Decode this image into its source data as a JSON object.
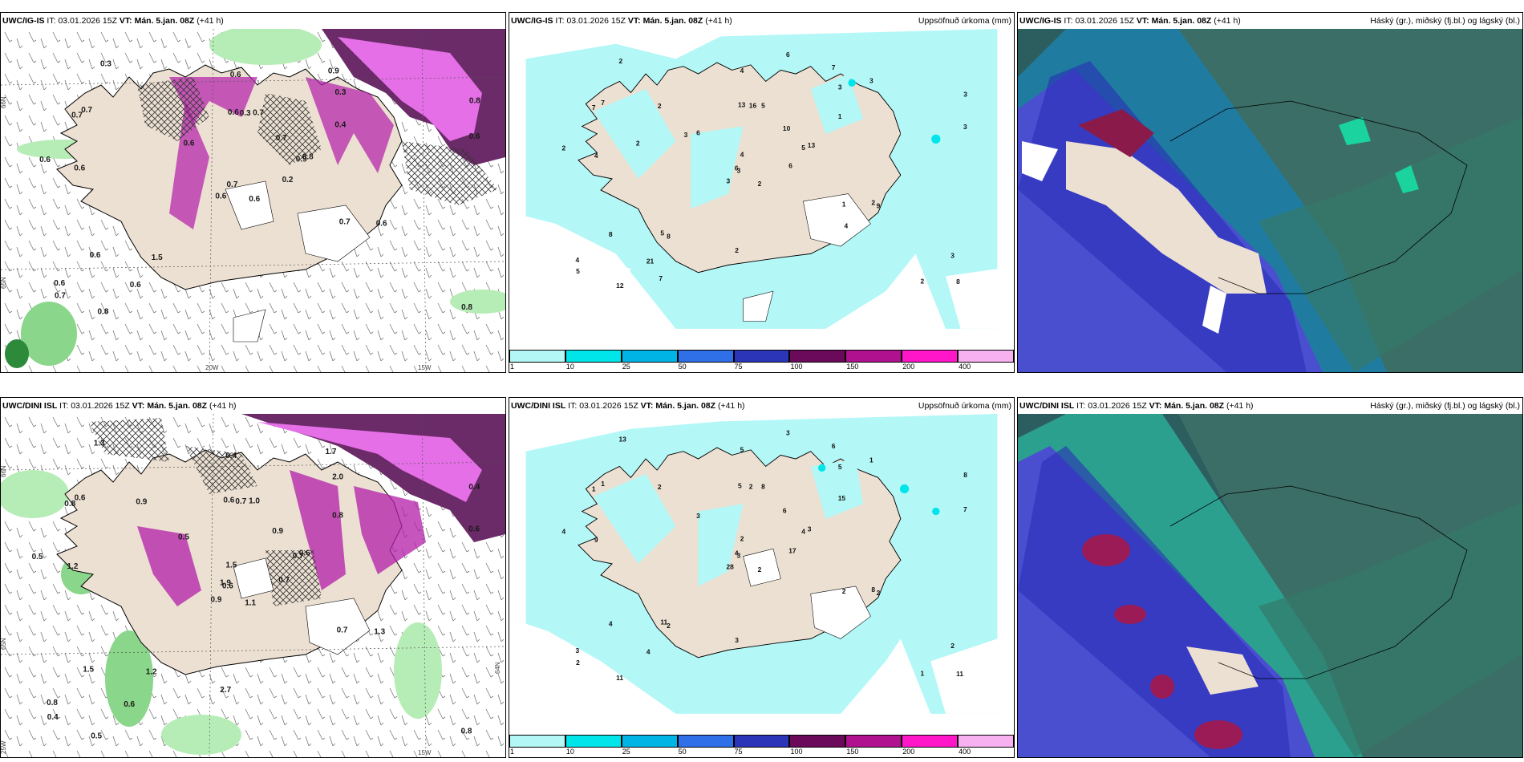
{
  "rows": [
    {
      "model": "UWC/IG-IS",
      "run_prefix": "IT:",
      "run_time": "03.01.2026 15Z",
      "valid_prefix": "VT:",
      "valid_time": "Mán. 5.jan. 08Z",
      "lead": "(+41 h)"
    },
    {
      "model": "UWC/DINI ISL",
      "run_prefix": "IT:",
      "run_time": "03.01.2026 15Z",
      "valid_prefix": "VT:",
      "valid_time": "Mán. 5.jan. 08Z",
      "lead": "(+41 h)"
    }
  ],
  "precip_title": "Uppsöfnuð úrkoma (mm)",
  "cloud_title": "Háský (gr.), miðský (fj.bl.) og lágský (bl.)",
  "axis_labels": {
    "lat66": "66N",
    "lat65": "65N",
    "lat64": "64N",
    "lon20": "20W",
    "lon15": "15W",
    "lon25": "25W"
  },
  "colorbar": {
    "levels": [
      "1",
      "10",
      "25",
      "50",
      "75",
      "100",
      "150",
      "200",
      "400"
    ],
    "colors": [
      "#b3f7f7",
      "#00e5ea",
      "#00b4e6",
      "#2f6fe8",
      "#2b35b8",
      "#6b0a5a",
      "#b0128f",
      "#ff16c8",
      "#f7b0f0"
    ]
  },
  "top_left_labels": [
    "0.6",
    "0.7",
    "0.7",
    "0.6",
    "0.9",
    "1.5",
    "0.9",
    "0.7",
    "0.3",
    "0.2",
    "0.3",
    "0.8",
    "0.6",
    "0.8",
    "0.6",
    "0.4",
    "0.8",
    "0.6",
    "0.7",
    "0.6",
    "0.6",
    "0.7",
    "0.6",
    "0.3",
    "0.8",
    "0.6",
    "0.7",
    "0.6",
    "0.6",
    "0.7",
    "0.6"
  ],
  "top_precip_labels": [
    "2",
    "7",
    "3",
    "4",
    "5",
    "8",
    "7",
    "5",
    "3",
    "6",
    "2",
    "8",
    "4",
    "3",
    "3",
    "1",
    "12",
    "13",
    "10",
    "8",
    "6",
    "5",
    "21",
    "16",
    "13",
    "9",
    "7",
    "4",
    "2",
    "1",
    "3",
    "6",
    "2",
    "4",
    "2",
    "3",
    "5",
    "2",
    "3",
    "2",
    "6",
    "3",
    "2",
    "4",
    "7"
  ],
  "bottom_left_labels": [
    "1.1",
    "0.8",
    "0.6",
    "0.8",
    "0.7",
    "1.2",
    "1.7",
    "1.0",
    "2.0",
    "0.7",
    "1.3",
    "0.8",
    "1.2",
    "0.4",
    "0.9",
    "0.8",
    "0.5",
    "0.6",
    "0.9",
    "1.5",
    "0.5",
    "0.4",
    "0.6",
    "0.7",
    "0.6",
    "1.3",
    "0.6",
    "0.4",
    "0.5",
    "0.7",
    "0.6",
    "1.9",
    "2.7",
    "1.5",
    "0.9"
  ],
  "bottom_precip_labels": [
    "2",
    "1",
    "3",
    "3",
    "4",
    "2",
    "6",
    "8",
    "5",
    "17",
    "13",
    "11",
    "9",
    "8",
    "28",
    "15",
    "11",
    "5",
    "6",
    "4",
    "3",
    "2",
    "4",
    "2",
    "3",
    "2",
    "1",
    "5",
    "4",
    "2",
    "7",
    "4",
    "3",
    "2",
    "2",
    "1",
    "11",
    "1",
    "2",
    "8",
    "3"
  ]
}
